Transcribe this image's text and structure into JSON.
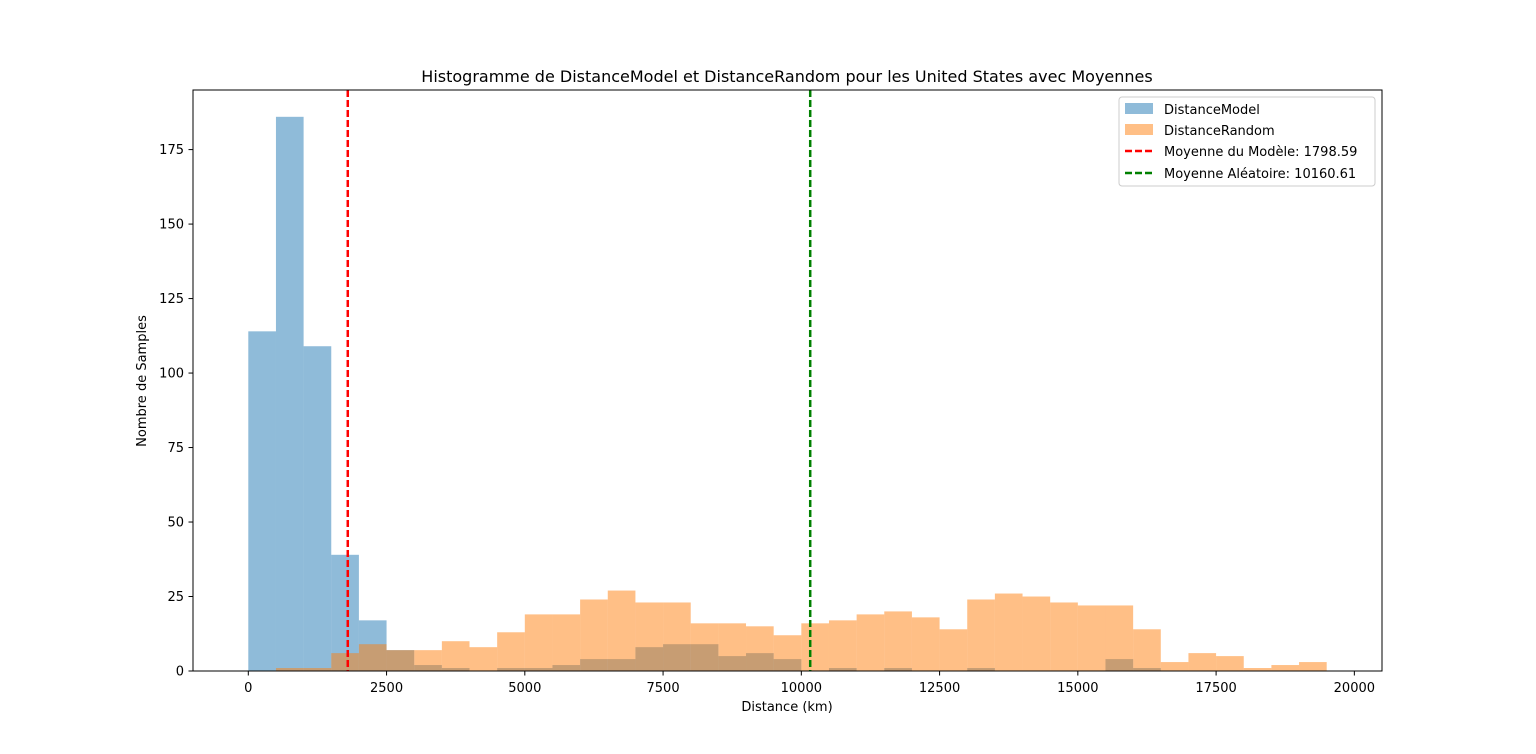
{
  "chart_data": {
    "type": "histogram",
    "title": "Histogramme de DistanceModel et DistanceRandom pour les United States avec Moyennes",
    "xlabel": "Distance (km)",
    "ylabel": "Nombre de Samples",
    "xlim": [
      -1000,
      20500
    ],
    "ylim": [
      0,
      195
    ],
    "x_ticks": [
      0,
      2500,
      5000,
      7500,
      10000,
      12500,
      15000,
      17500,
      20000
    ],
    "x_tick_labels": [
      "0",
      "2500",
      "5000",
      "7500",
      "10000",
      "12500",
      "15000",
      "17500",
      "20000"
    ],
    "y_ticks": [
      0,
      25,
      50,
      75,
      100,
      125,
      150,
      175
    ],
    "y_tick_labels": [
      "0",
      "25",
      "50",
      "75",
      "100",
      "125",
      "150",
      "175"
    ],
    "grid": false,
    "legend_position": "top-right",
    "series": [
      {
        "name": "DistanceModel",
        "color": "#1f77b4",
        "alpha": 0.5,
        "bin_width": 500,
        "bins_start": [
          0,
          500,
          1000,
          1500,
          2000,
          2500,
          3000,
          3500,
          4000,
          4500,
          5000,
          5500,
          6000,
          6500,
          7000,
          7500,
          8000,
          8500,
          9000,
          9500,
          10000,
          10500,
          11000,
          11500,
          12000,
          12500,
          13000,
          13500,
          14000,
          14500,
          15000,
          15500,
          16000
        ],
        "counts": [
          114,
          186,
          109,
          39,
          17,
          7,
          2,
          1,
          0,
          1,
          1,
          2,
          4,
          4,
          8,
          9,
          9,
          5,
          6,
          4,
          0,
          1,
          0,
          1,
          0,
          0,
          1,
          0,
          0,
          0,
          0,
          4,
          1
        ]
      },
      {
        "name": "DistanceRandom",
        "color": "#ff7f0e",
        "alpha": 0.5,
        "bin_width": 500,
        "bins_start": [
          500,
          1000,
          1500,
          2000,
          2500,
          3000,
          3500,
          4000,
          4500,
          5000,
          5500,
          6000,
          6500,
          7000,
          7500,
          8000,
          8500,
          9000,
          9500,
          10000,
          10500,
          11000,
          11500,
          12000,
          12500,
          13000,
          13500,
          14000,
          14500,
          15000,
          15500,
          16000,
          16500,
          17000,
          17500,
          18000,
          18500,
          19000
        ],
        "counts": [
          1,
          1,
          6,
          9,
          7,
          7,
          10,
          8,
          13,
          19,
          19,
          24,
          27,
          23,
          23,
          16,
          16,
          15,
          12,
          16,
          17,
          19,
          20,
          18,
          14,
          24,
          26,
          25,
          23,
          22,
          22,
          14,
          3,
          6,
          5,
          1,
          2,
          3
        ]
      }
    ],
    "mean_lines": [
      {
        "label": "Moyenne du Modèle: 1798.59",
        "value": 1798.59,
        "color": "#ff0000",
        "style": "dashed"
      },
      {
        "label": "Moyenne Aléatoire: 10160.61",
        "value": 10160.61,
        "color": "#008000",
        "style": "dashed"
      }
    ]
  }
}
